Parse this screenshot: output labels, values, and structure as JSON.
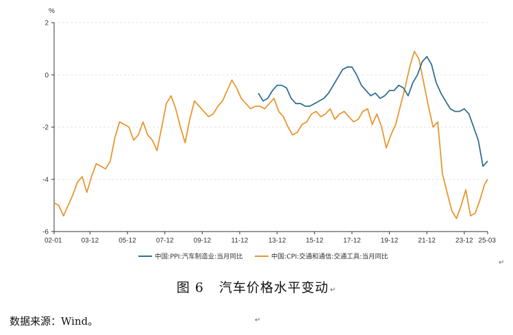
{
  "chart_data": {
    "type": "line",
    "title": "",
    "ylabel": "%",
    "xlabel": "",
    "ylim": [
      -6,
      2
    ],
    "yticks": [
      2,
      0,
      -2,
      -4,
      -6
    ],
    "xticks": [
      "02-01",
      "03-12",
      "05-12",
      "07-12",
      "09-12",
      "11-12",
      "13-12",
      "15-12",
      "17-12",
      "19-12",
      "21-12",
      "23-12",
      "25-03"
    ],
    "xlim": [
      "2002-01",
      "2025-03"
    ],
    "grid": "horizontal dashed",
    "legend_position": "bottom",
    "series": [
      {
        "name": "中国:PPI:汽车制造业:当月同比",
        "color": "#2e6e91",
        "x": [
          "2012-12",
          "2013-03",
          "2013-06",
          "2013-09",
          "2013-12",
          "2014-03",
          "2014-06",
          "2014-09",
          "2014-12",
          "2015-03",
          "2015-06",
          "2015-09",
          "2015-12",
          "2016-03",
          "2016-06",
          "2016-09",
          "2016-12",
          "2017-03",
          "2017-06",
          "2017-09",
          "2017-12",
          "2018-03",
          "2018-06",
          "2018-09",
          "2018-12",
          "2019-03",
          "2019-06",
          "2019-09",
          "2019-12",
          "2020-03",
          "2020-06",
          "2020-09",
          "2020-12",
          "2021-03",
          "2021-06",
          "2021-09",
          "2021-12",
          "2022-03",
          "2022-06",
          "2022-09",
          "2022-12",
          "2023-03",
          "2023-06",
          "2023-09",
          "2023-12",
          "2024-03",
          "2024-06",
          "2024-09",
          "2024-12",
          "2025-03"
        ],
        "values": [
          -0.7,
          -1.0,
          -0.9,
          -0.6,
          -0.4,
          -0.4,
          -0.5,
          -0.9,
          -1.1,
          -1.1,
          -1.2,
          -1.2,
          -1.1,
          -1.0,
          -0.9,
          -0.7,
          -0.4,
          -0.1,
          0.2,
          0.3,
          0.3,
          0.0,
          -0.4,
          -0.6,
          -0.8,
          -0.7,
          -0.9,
          -0.8,
          -0.6,
          -0.6,
          -0.4,
          -0.5,
          -0.8,
          -0.3,
          0.0,
          0.5,
          0.7,
          0.4,
          -0.3,
          -0.7,
          -1.0,
          -1.3,
          -1.4,
          -1.4,
          -1.3,
          -1.5,
          -2.0,
          -2.5,
          -3.5,
          -3.3
        ]
      },
      {
        "name": "中国:CPI:交通和通信:交通工具:当月同比",
        "color": "#e8962e",
        "x": [
          "2002-01",
          "2002-04",
          "2002-07",
          "2002-10",
          "2003-01",
          "2003-04",
          "2003-07",
          "2003-10",
          "2004-01",
          "2004-04",
          "2004-07",
          "2004-10",
          "2005-01",
          "2005-04",
          "2005-07",
          "2005-10",
          "2006-01",
          "2006-04",
          "2006-07",
          "2006-10",
          "2007-01",
          "2007-04",
          "2007-07",
          "2007-10",
          "2008-01",
          "2008-04",
          "2008-07",
          "2008-10",
          "2009-01",
          "2009-04",
          "2009-07",
          "2009-10",
          "2010-01",
          "2010-04",
          "2010-07",
          "2010-10",
          "2011-01",
          "2011-04",
          "2011-07",
          "2011-10",
          "2012-01",
          "2012-04",
          "2012-07",
          "2012-10",
          "2013-01",
          "2013-04",
          "2013-07",
          "2013-10",
          "2014-01",
          "2014-04",
          "2014-07",
          "2014-10",
          "2015-01",
          "2015-04",
          "2015-07",
          "2015-10",
          "2016-01",
          "2016-04",
          "2016-07",
          "2016-10",
          "2017-01",
          "2017-04",
          "2017-07",
          "2017-10",
          "2018-01",
          "2018-04",
          "2018-07",
          "2018-10",
          "2019-01",
          "2019-04",
          "2019-07",
          "2019-10",
          "2020-01",
          "2020-04",
          "2020-07",
          "2020-10",
          "2021-01",
          "2021-04",
          "2021-07",
          "2021-10",
          "2022-01",
          "2022-04",
          "2022-07",
          "2022-10",
          "2023-01",
          "2023-04",
          "2023-07",
          "2023-10",
          "2024-01",
          "2024-04",
          "2024-07",
          "2024-10",
          "2025-01",
          "2025-03"
        ],
        "values": [
          -4.9,
          -5.0,
          -5.4,
          -5.0,
          -4.6,
          -4.1,
          -3.9,
          -4.5,
          -3.9,
          -3.4,
          -3.5,
          -3.6,
          -3.3,
          -2.4,
          -1.8,
          -1.9,
          -2.0,
          -2.5,
          -2.3,
          -1.8,
          -2.3,
          -2.5,
          -2.9,
          -2.0,
          -1.1,
          -0.8,
          -1.3,
          -2.0,
          -2.6,
          -1.7,
          -1.0,
          -1.2,
          -1.4,
          -1.6,
          -1.5,
          -1.2,
          -1.0,
          -0.6,
          -0.2,
          -0.5,
          -0.9,
          -1.1,
          -1.3,
          -1.2,
          -1.2,
          -1.3,
          -1.1,
          -0.9,
          -1.4,
          -1.6,
          -2.0,
          -2.3,
          -2.2,
          -1.9,
          -1.8,
          -1.5,
          -1.4,
          -1.6,
          -1.5,
          -1.3,
          -1.7,
          -1.5,
          -1.4,
          -1.6,
          -1.8,
          -1.7,
          -1.4,
          -1.3,
          -1.9,
          -1.5,
          -2.0,
          -2.8,
          -2.3,
          -1.9,
          -1.2,
          -0.5,
          0.3,
          0.9,
          0.6,
          -0.3,
          -1.2,
          -2.0,
          -1.8,
          -3.8,
          -4.5,
          -5.2,
          -5.5,
          -5.0,
          -4.4,
          -5.4,
          -5.3,
          -4.8,
          -4.2,
          -4.0
        ]
      }
    ]
  },
  "caption": {
    "label": "图 6",
    "text": "汽车价格水平变动"
  },
  "source_note": "数据来源：Wind。",
  "para_mark": "↵"
}
